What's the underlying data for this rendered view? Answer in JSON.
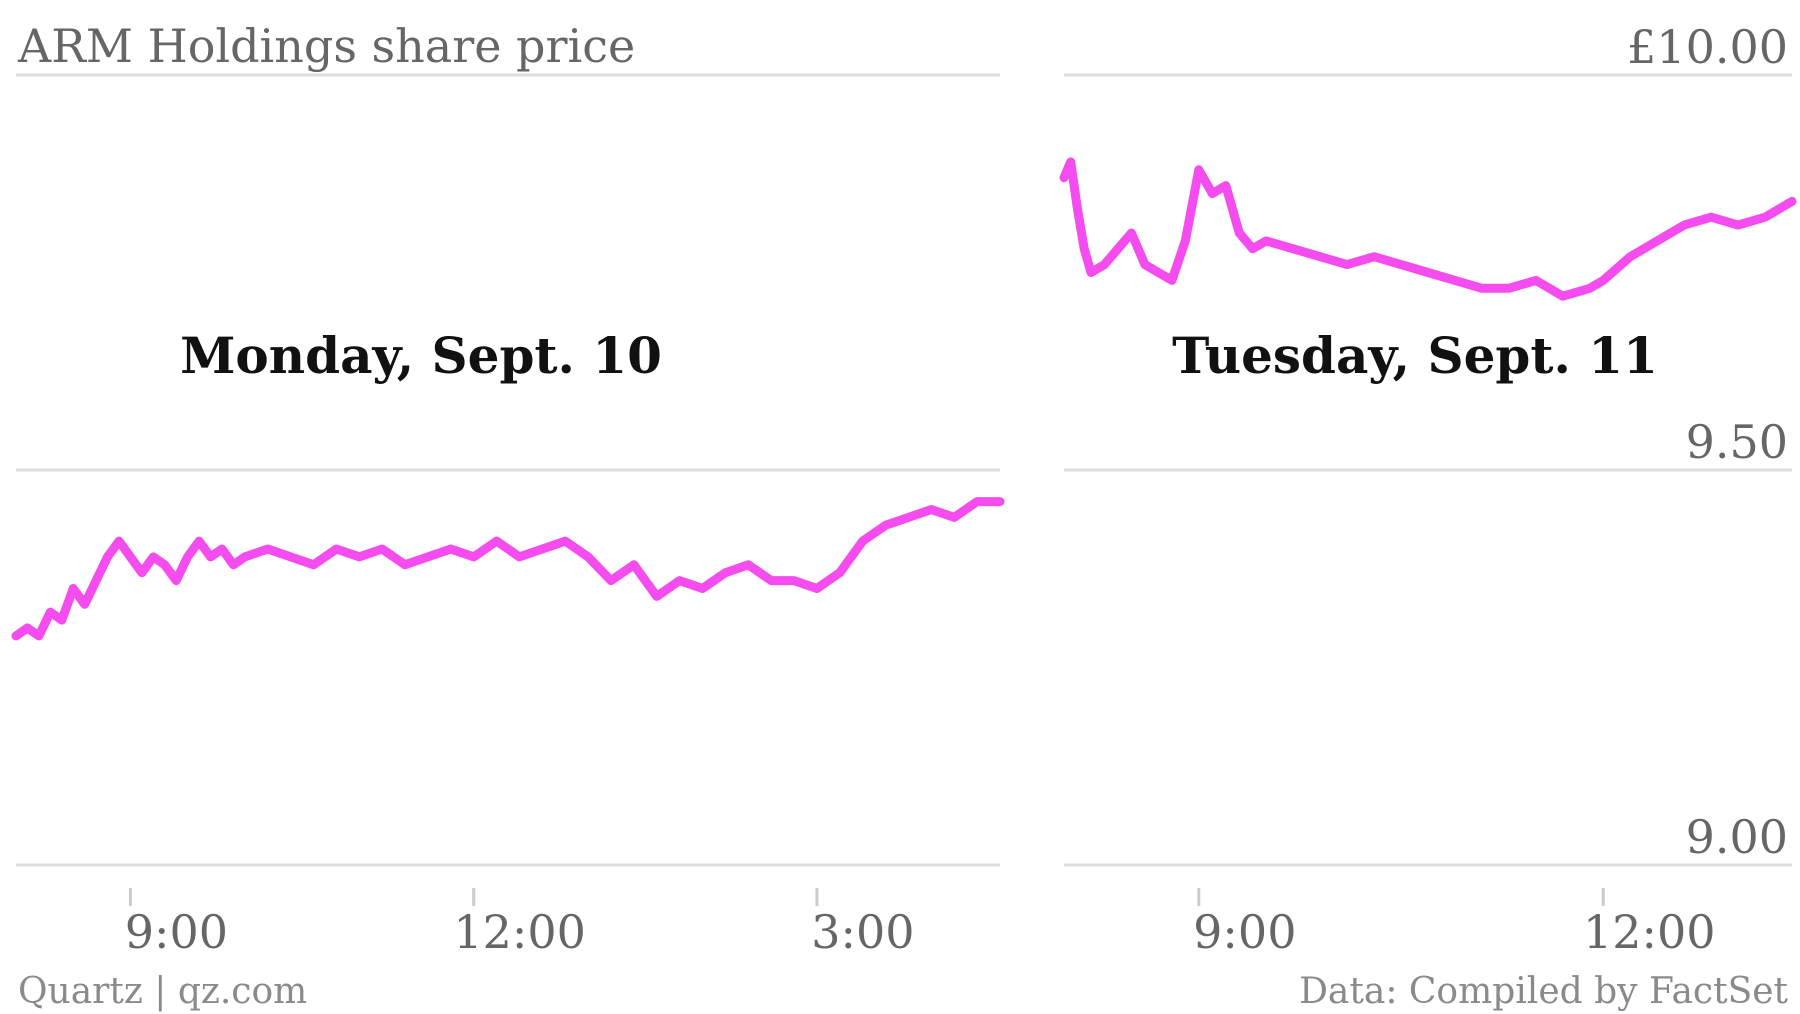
{
  "chart_data": {
    "type": "line",
    "title": "ARM Holdings share price",
    "y_tick_labels": [
      "£10.00",
      "9.50",
      "9.00"
    ],
    "y_ticks": [
      10.0,
      9.5,
      9.0
    ],
    "ylim": [
      9.0,
      10.0
    ],
    "grid": true,
    "series_color": "#f54cf0",
    "footer": {
      "source_left": "Quartz | qz.com",
      "source_right": "Data: Compiled by FactSet"
    },
    "panels": [
      {
        "title": "Monday, Sept. 10",
        "xlim": [
          8.0,
          16.6
        ],
        "x_ticks": [
          9,
          12,
          15
        ],
        "x_tick_labels": [
          "9:00",
          "12:00",
          "3:00"
        ],
        "x": [
          8.0,
          8.1,
          8.2,
          8.3,
          8.4,
          8.5,
          8.6,
          8.7,
          8.8,
          8.9,
          9.0,
          9.1,
          9.2,
          9.3,
          9.4,
          9.5,
          9.6,
          9.7,
          9.8,
          9.9,
          10.0,
          10.2,
          10.4,
          10.6,
          10.8,
          11.0,
          11.2,
          11.4,
          11.6,
          11.8,
          12.0,
          12.2,
          12.4,
          12.6,
          12.8,
          13.0,
          13.2,
          13.4,
          13.6,
          13.8,
          14.0,
          14.2,
          14.4,
          14.6,
          14.8,
          15.0,
          15.2,
          15.4,
          15.6,
          15.8,
          16.0,
          16.2,
          16.4,
          16.6
        ],
        "y": [
          9.29,
          9.3,
          9.29,
          9.32,
          9.31,
          9.35,
          9.33,
          9.36,
          9.39,
          9.41,
          9.39,
          9.37,
          9.39,
          9.38,
          9.36,
          9.39,
          9.41,
          9.39,
          9.4,
          9.38,
          9.39,
          9.4,
          9.39,
          9.38,
          9.4,
          9.39,
          9.4,
          9.38,
          9.39,
          9.4,
          9.39,
          9.41,
          9.39,
          9.4,
          9.41,
          9.39,
          9.36,
          9.38,
          9.34,
          9.36,
          9.35,
          9.37,
          9.38,
          9.36,
          9.36,
          9.35,
          9.37,
          9.41,
          9.43,
          9.44,
          9.45,
          9.44,
          9.46,
          9.46
        ]
      },
      {
        "title": "Tuesday, Sept. 11",
        "xlim": [
          8.0,
          13.4
        ],
        "x_ticks": [
          9,
          12
        ],
        "x_tick_labels": [
          "9:00",
          "12:00"
        ],
        "x": [
          8.0,
          8.05,
          8.1,
          8.15,
          8.2,
          8.3,
          8.4,
          8.5,
          8.6,
          8.7,
          8.8,
          8.9,
          9.0,
          9.1,
          9.2,
          9.3,
          9.4,
          9.5,
          9.7,
          9.9,
          10.1,
          10.3,
          10.5,
          10.7,
          10.9,
          11.1,
          11.3,
          11.5,
          11.7,
          11.9,
          12.0,
          12.2,
          12.4,
          12.6,
          12.8,
          13.0,
          13.2,
          13.4
        ],
        "y": [
          9.87,
          9.89,
          9.83,
          9.78,
          9.75,
          9.76,
          9.78,
          9.8,
          9.76,
          9.75,
          9.74,
          9.79,
          9.88,
          9.85,
          9.86,
          9.8,
          9.78,
          9.79,
          9.78,
          9.77,
          9.76,
          9.77,
          9.76,
          9.75,
          9.74,
          9.73,
          9.73,
          9.74,
          9.72,
          9.73,
          9.74,
          9.77,
          9.79,
          9.81,
          9.82,
          9.81,
          9.82,
          9.84
        ]
      }
    ]
  }
}
